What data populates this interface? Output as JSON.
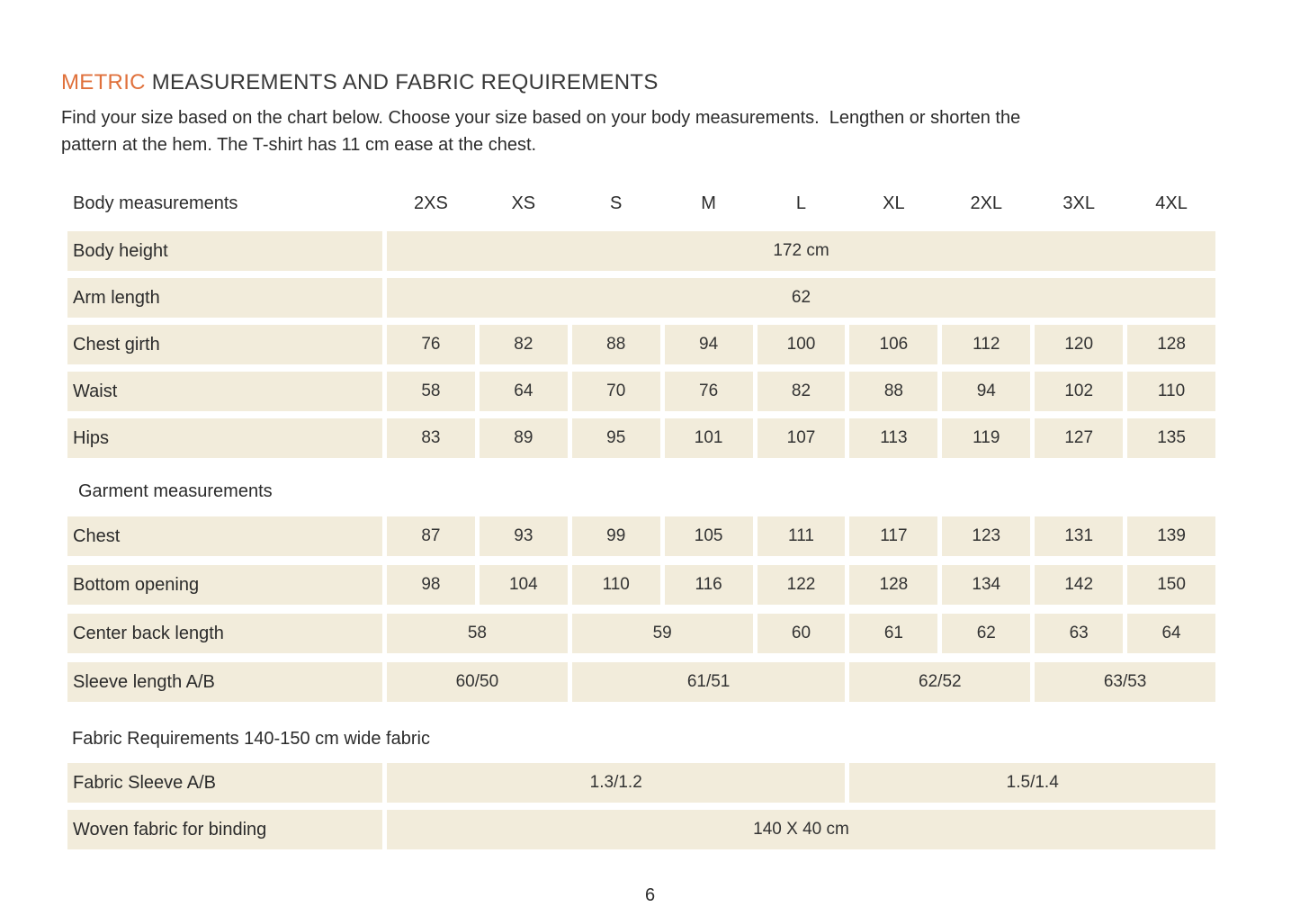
{
  "header": {
    "title_accent": "METRIC",
    "title_rest": " MEASUREMENTS AND FABRIC REQUIREMENTS",
    "intro_line1": "Find your size based on the chart below. Choose your size based on your body measurements.  Lengthen or shorten the",
    "intro_line2": "pattern at the hem. The T-shirt has 11 cm ease at the chest."
  },
  "colors": {
    "accent_orange": "#E0713C",
    "cell_background": "#F2ECDB",
    "text": "#2B2B2B"
  },
  "table": {
    "header_label": "Body measurements",
    "sizes": [
      "2XS",
      "XS",
      "S",
      "M",
      "L",
      "XL",
      "2XL",
      "3XL",
      "4XL"
    ],
    "rows": [
      {
        "type": "data",
        "label": "Body height",
        "cells": [
          {
            "text": "172 cm",
            "span": 9
          }
        ]
      },
      {
        "type": "data",
        "label": "Arm length",
        "cells": [
          {
            "text": "62",
            "span": 9
          }
        ]
      },
      {
        "type": "data",
        "label": "Chest girth",
        "cells": [
          {
            "text": "76",
            "span": 1
          },
          {
            "text": "82",
            "span": 1
          },
          {
            "text": "88",
            "span": 1
          },
          {
            "text": "94",
            "span": 1
          },
          {
            "text": "100",
            "span": 1
          },
          {
            "text": "106",
            "span": 1
          },
          {
            "text": "112",
            "span": 1
          },
          {
            "text": "120",
            "span": 1
          },
          {
            "text": "128",
            "span": 1
          }
        ]
      },
      {
        "type": "data",
        "label": "Waist",
        "cells": [
          {
            "text": "58",
            "span": 1
          },
          {
            "text": "64",
            "span": 1
          },
          {
            "text": "70",
            "span": 1
          },
          {
            "text": "76",
            "span": 1
          },
          {
            "text": "82",
            "span": 1
          },
          {
            "text": "88",
            "span": 1
          },
          {
            "text": "94",
            "span": 1
          },
          {
            "text": "102",
            "span": 1
          },
          {
            "text": "110",
            "span": 1
          }
        ]
      },
      {
        "type": "data",
        "label": "Hips",
        "cells": [
          {
            "text": "83",
            "span": 1
          },
          {
            "text": "89",
            "span": 1
          },
          {
            "text": "95",
            "span": 1
          },
          {
            "text": "101",
            "span": 1
          },
          {
            "text": "107",
            "span": 1
          },
          {
            "text": "113",
            "span": 1
          },
          {
            "text": "119",
            "span": 1
          },
          {
            "text": "127",
            "span": 1
          },
          {
            "text": "135",
            "span": 1
          }
        ]
      },
      {
        "type": "section",
        "label": "Garment measurements"
      },
      {
        "type": "data",
        "label": "Chest",
        "cells": [
          {
            "text": "87",
            "span": 1
          },
          {
            "text": "93",
            "span": 1
          },
          {
            "text": "99",
            "span": 1
          },
          {
            "text": "105",
            "span": 1
          },
          {
            "text": "111",
            "span": 1
          },
          {
            "text": "117",
            "span": 1
          },
          {
            "text": "123",
            "span": 1
          },
          {
            "text": "131",
            "span": 1
          },
          {
            "text": "139",
            "span": 1
          }
        ]
      },
      {
        "type": "data",
        "label": "Bottom opening",
        "cells": [
          {
            "text": "98",
            "span": 1
          },
          {
            "text": "104",
            "span": 1
          },
          {
            "text": "110",
            "span": 1
          },
          {
            "text": "116",
            "span": 1
          },
          {
            "text": "122",
            "span": 1
          },
          {
            "text": "128",
            "span": 1
          },
          {
            "text": "134",
            "span": 1
          },
          {
            "text": "142",
            "span": 1
          },
          {
            "text": "150",
            "span": 1
          }
        ]
      },
      {
        "type": "data",
        "label": "Center back length",
        "cells": [
          {
            "text": "58",
            "span": 2
          },
          {
            "text": "59",
            "span": 2
          },
          {
            "text": "60",
            "span": 1
          },
          {
            "text": "61",
            "span": 1
          },
          {
            "text": "62",
            "span": 1
          },
          {
            "text": "63",
            "span": 1
          },
          {
            "text": "64",
            "span": 1
          }
        ]
      },
      {
        "type": "data",
        "label": "Sleeve length A/B",
        "cells": [
          {
            "text": "60/50",
            "span": 2
          },
          {
            "text": "61/51",
            "span": 3
          },
          {
            "text": "62/52",
            "span": 2
          },
          {
            "text": "63/53",
            "span": 2
          }
        ]
      },
      {
        "type": "section",
        "label": "Fabric Requirements 140-150 cm wide fabric"
      },
      {
        "type": "data",
        "label": "Fabric Sleeve A/B",
        "cells": [
          {
            "text": "1.3/1.2",
            "span": 5
          },
          {
            "text": "1.5/1.4",
            "span": 4
          }
        ]
      },
      {
        "type": "data",
        "label": "Woven fabric for binding",
        "cells": [
          {
            "text": "140 X 40 cm",
            "span": 9
          }
        ]
      }
    ]
  },
  "footer": {
    "page_number": "6"
  }
}
